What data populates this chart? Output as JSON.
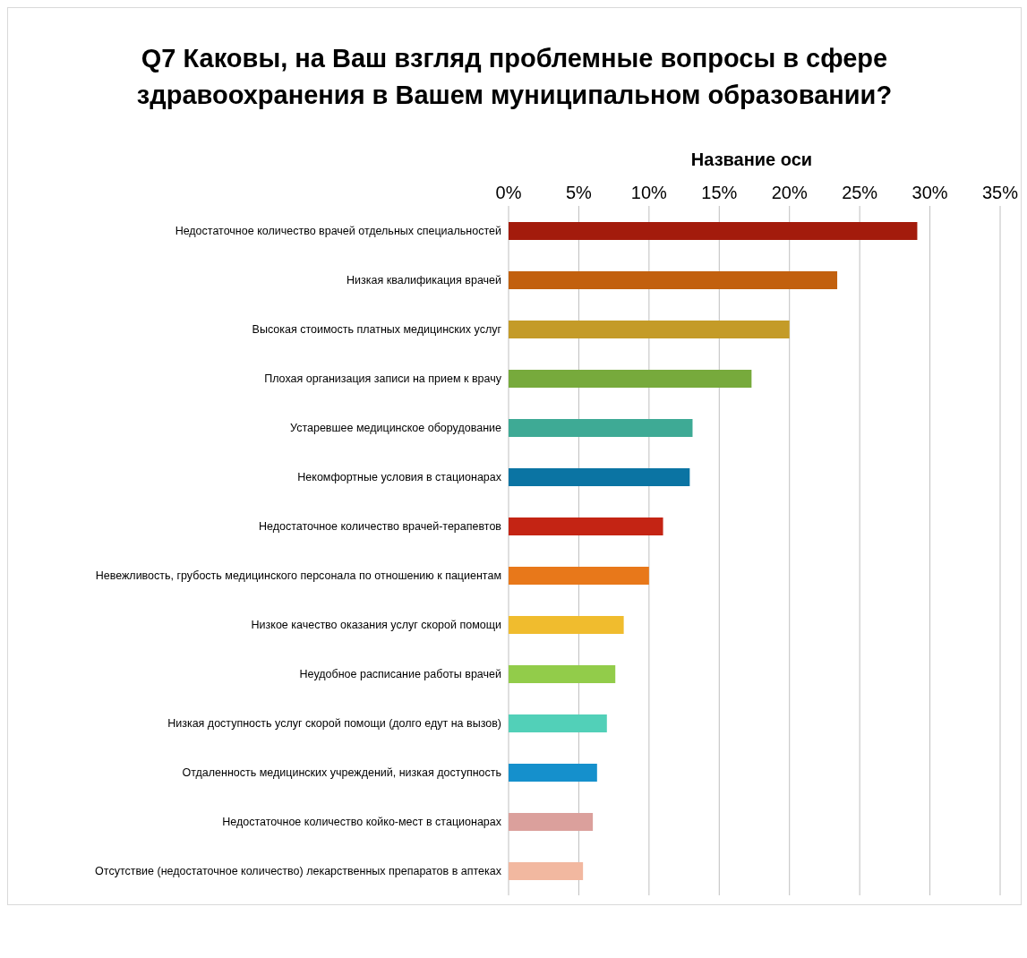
{
  "chart_data": {
    "type": "bar",
    "orientation": "horizontal",
    "title": "Q7 Каковы, на Ваш взгляд проблемные вопросы в сфере здравоохранения в Вашем муниципальном образовании?",
    "xlabel": "Название оси",
    "categories": [
      "Недостаточное количество врачей отдельных специальностей",
      "Низкая квалификация врачей",
      "Высокая стоимость платных медицинских услуг",
      "Плохая организация записи на прием к врачу",
      "Устаревшее медицинское оборудование",
      "Некомфортные условия в стационарах",
      "Недостаточное количество врачей-терапевтов",
      "Невежливость, грубость медицинского персонала по отношению к пациентам",
      "Низкое качество оказания услуг скорой помощи",
      "Неудобное расписание работы врачей",
      "Низкая доступность услуг скорой помощи (долго едут на вызов)",
      "Отдаленность медицинских учреждений, низкая доступность",
      "Недостаточное количество койко-мест в стационарах",
      "Отсутствие (недостаточное количество) лекарственных препаратов в аптеках"
    ],
    "values": [
      29.1,
      23.4,
      20.0,
      17.3,
      13.1,
      12.9,
      11.0,
      10.0,
      8.2,
      7.6,
      7.0,
      6.3,
      6.0,
      5.3
    ],
    "colors": [
      "#a31b0c",
      "#c2600e",
      "#c49b28",
      "#77aa3c",
      "#3eaa95",
      "#0b74a3",
      "#c42414",
      "#e8781a",
      "#f0bc2e",
      "#92cc4a",
      "#52d0b8",
      "#1590cc",
      "#dba09c",
      "#f2b8a0"
    ],
    "xlim": [
      0,
      35
    ],
    "xticks": [
      {
        "value": 0,
        "label": "0%"
      },
      {
        "value": 5,
        "label": "5%"
      },
      {
        "value": 10,
        "label": "10%"
      },
      {
        "value": 15,
        "label": "15%"
      },
      {
        "value": 20,
        "label": "20%"
      },
      {
        "value": 25,
        "label": "25%"
      },
      {
        "value": 30,
        "label": "30%"
      },
      {
        "value": 35,
        "label": "35%"
      }
    ],
    "grid": "x"
  }
}
